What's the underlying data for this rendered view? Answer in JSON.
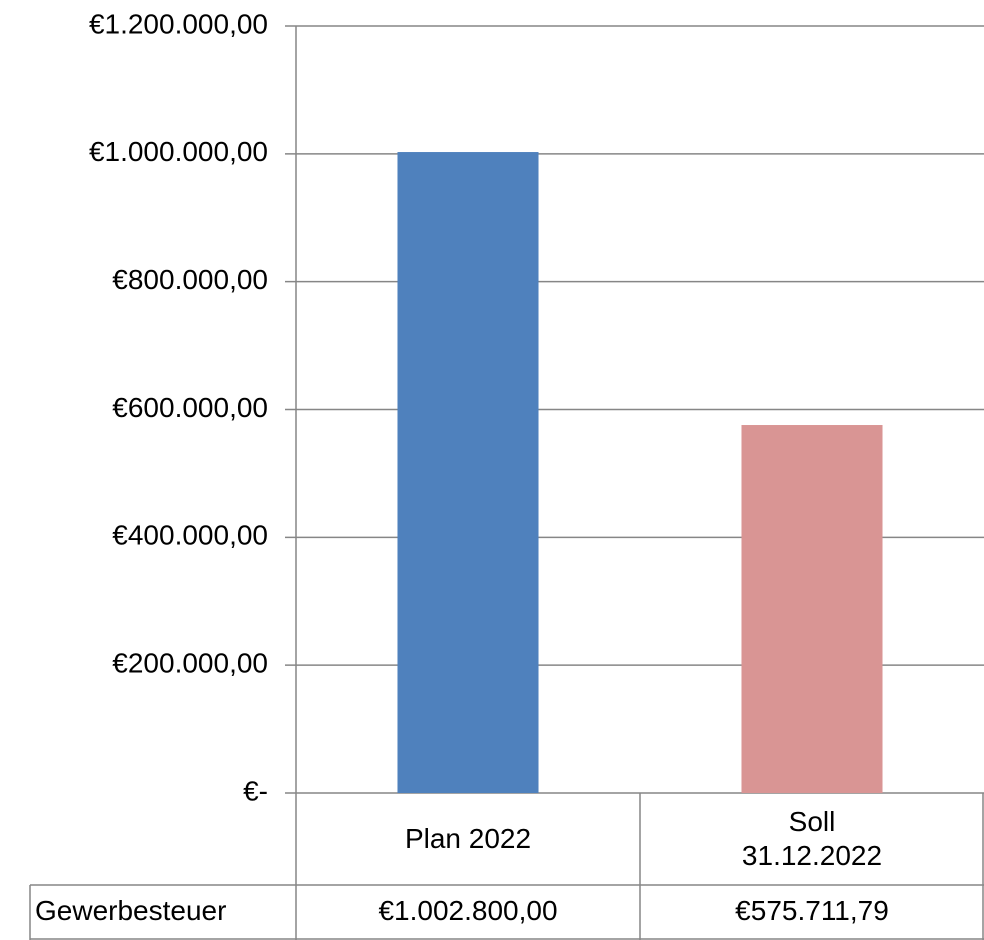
{
  "chart_data": {
    "type": "bar",
    "categories": [
      "Plan 2022",
      "Soll\n31.12.2022"
    ],
    "series": [
      {
        "name": "Gewerbesteuer",
        "values": [
          1002800,
          575711.79
        ],
        "value_labels": [
          "€1.002.800,00",
          "€575.711,79"
        ],
        "colors": [
          "#4f81bd",
          "#d99594"
        ]
      }
    ],
    "ylim": [
      0,
      1200000
    ],
    "yticks": [
      {
        "value": 0,
        "label": "€-"
      },
      {
        "value": 200000,
        "label": "€200.000,00"
      },
      {
        "value": 400000,
        "label": "€400.000,00"
      },
      {
        "value": 600000,
        "label": "€600.000,00"
      },
      {
        "value": 800000,
        "label": "€800.000,00"
      },
      {
        "value": 1000000,
        "label": "€1.000.000,00"
      },
      {
        "value": 1200000,
        "label": "€1.200.000,00"
      }
    ],
    "grid": true
  }
}
